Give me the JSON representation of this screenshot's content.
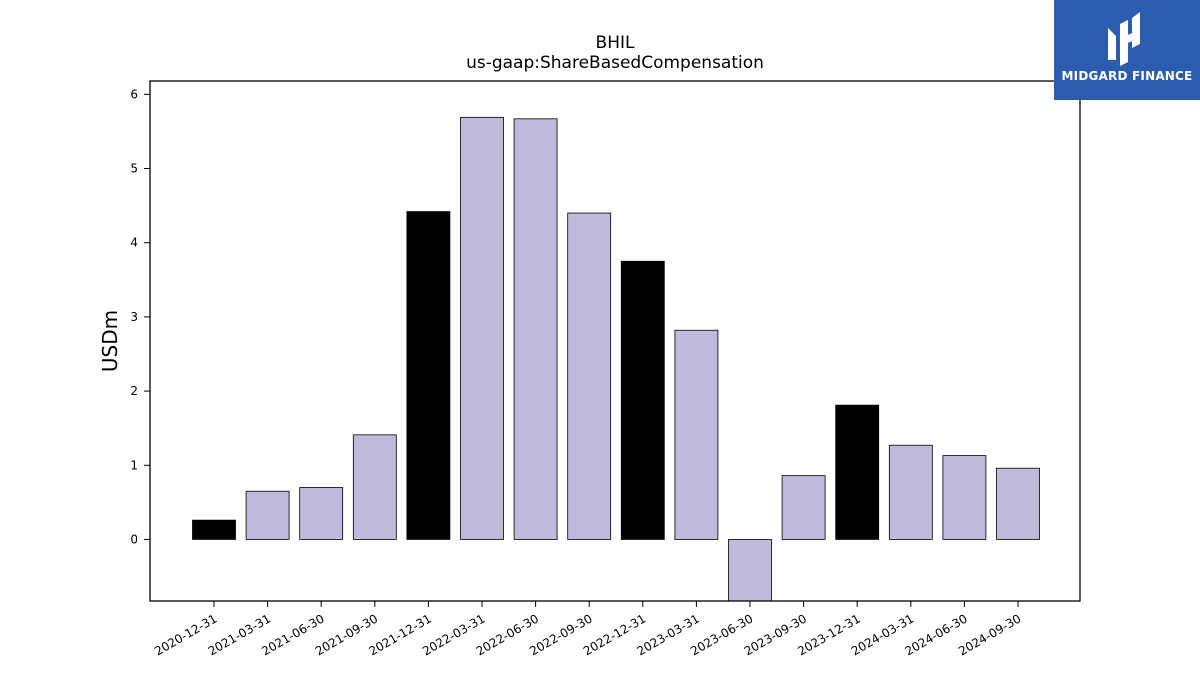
{
  "chart_data": {
    "type": "bar",
    "title": "BHIL",
    "subtitle": "us-gaap:ShareBasedCompensation",
    "xlabel": "",
    "ylabel": "USDm",
    "ylim": [
      -0.83,
      6.18
    ],
    "yticks": [
      0,
      1,
      2,
      3,
      4,
      5,
      6
    ],
    "grid": false,
    "categories": [
      "2020-12-31",
      "2021-03-31",
      "2021-06-30",
      "2021-09-30",
      "2021-12-31",
      "2022-03-31",
      "2022-06-30",
      "2022-09-30",
      "2022-12-31",
      "2023-03-31",
      "2023-06-30",
      "2023-09-30",
      "2023-12-31",
      "2024-03-31",
      "2024-06-30",
      "2024-09-30"
    ],
    "values": [
      0.26,
      0.65,
      0.7,
      1.41,
      4.42,
      5.69,
      5.67,
      4.4,
      3.75,
      2.82,
      -0.83,
      0.86,
      1.81,
      1.27,
      1.13,
      0.96
    ],
    "bar_colors": [
      "#000000",
      "#bdbadb",
      "#bdbadb",
      "#bdbadb",
      "#000000",
      "#bdbadb",
      "#bdbadb",
      "#bdbadb",
      "#000000",
      "#bdbadb",
      "#bdbadb",
      "#bdbadb",
      "#000000",
      "#bdbadb",
      "#bdbadb",
      "#bdbadb"
    ]
  },
  "logo": {
    "text": "MIDGARD FINANCE",
    "background": "#2b5cad"
  }
}
